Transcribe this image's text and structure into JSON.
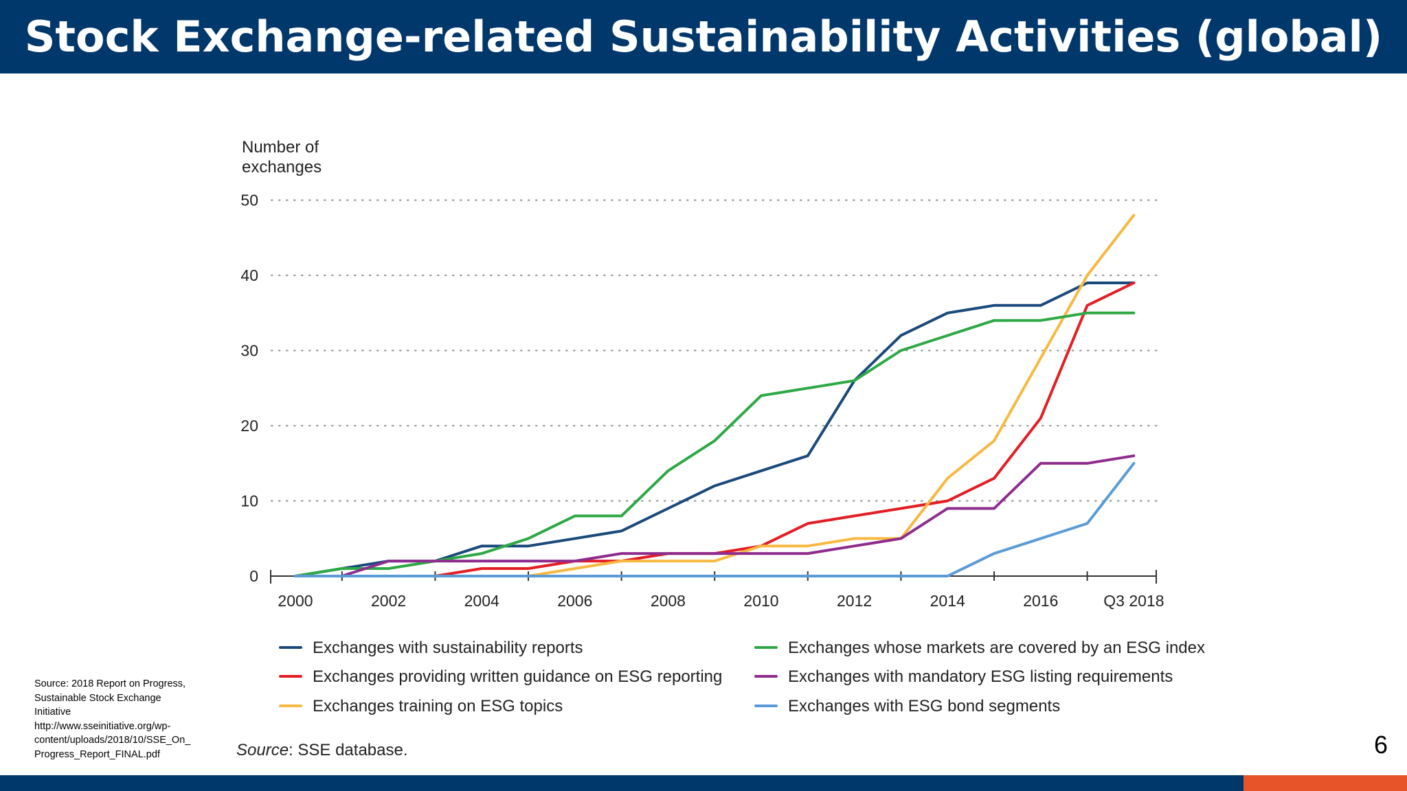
{
  "slide": {
    "title": "Stock Exchange-related Sustainability Activities (global)",
    "page_number": "6",
    "source_note": [
      "Source: 2018 Report on Progress,",
      "Sustainable Stock Exchange",
      "Initiative",
      "http://www.sseinitiative.org/wp-",
      "content/uploads/2018/10/SSE_On_",
      "Progress_Report_FINAL.pdf"
    ],
    "colors": {
      "header": "#00386b",
      "accent": "#e8542a"
    }
  },
  "chart_data": {
    "type": "line",
    "ylabel": "Number of exchanges",
    "ylabel_lines": [
      "Number of",
      "exchanges"
    ],
    "xlabel": "",
    "ylim": [
      0,
      50
    ],
    "yticks": [
      0,
      10,
      20,
      30,
      40,
      50
    ],
    "x": [
      "2000",
      "2001",
      "2002",
      "2003",
      "2004",
      "2005",
      "2006",
      "2007",
      "2008",
      "2009",
      "2010",
      "2011",
      "2012",
      "2013",
      "2014",
      "2015",
      "2016",
      "2017",
      "Q3 2018"
    ],
    "xtick_labels": [
      "2000",
      "2002",
      "2004",
      "2006",
      "2008",
      "2010",
      "2012",
      "2014",
      "2016",
      "Q3 2018"
    ],
    "grid": "horizontal dotted",
    "legend_position": "bottom",
    "source_text": {
      "italic": "Source",
      "rest": ": SSE database."
    },
    "series": [
      {
        "name": "Exchanges with sustainability reports",
        "color": "#1a4a7c",
        "values": [
          0,
          1,
          2,
          2,
          4,
          4,
          5,
          6,
          9,
          12,
          14,
          16,
          26,
          32,
          35,
          36,
          36,
          39,
          39
        ]
      },
      {
        "name": "Exchanges providing written guidance on ESG reporting",
        "color": "#e31e24",
        "values": [
          0,
          0,
          0,
          0,
          1,
          1,
          2,
          2,
          3,
          3,
          4,
          7,
          8,
          9,
          10,
          13,
          21,
          36,
          39
        ]
      },
      {
        "name": "Exchanges training on ESG topics",
        "color": "#f7b941",
        "values": [
          0,
          0,
          0,
          0,
          0,
          0,
          1,
          2,
          2,
          2,
          4,
          4,
          5,
          5,
          13,
          18,
          29,
          40,
          48
        ]
      },
      {
        "name": "Exchanges whose markets are covered by an ESG index",
        "color": "#2ea844",
        "values": [
          0,
          1,
          1,
          2,
          3,
          5,
          8,
          8,
          14,
          18,
          24,
          25,
          26,
          30,
          32,
          34,
          34,
          35,
          35
        ]
      },
      {
        "name": "Exchanges with mandatory ESG listing requirements",
        "color": "#8e2c8e",
        "values": [
          0,
          0,
          2,
          2,
          2,
          2,
          2,
          3,
          3,
          3,
          3,
          3,
          4,
          5,
          9,
          9,
          15,
          15,
          16
        ]
      },
      {
        "name": "Exchanges with ESG bond segments",
        "color": "#5b9bd5",
        "values": [
          0,
          0,
          0,
          0,
          0,
          0,
          0,
          0,
          0,
          0,
          0,
          0,
          0,
          0,
          0,
          3,
          5,
          7,
          15
        ]
      }
    ]
  }
}
